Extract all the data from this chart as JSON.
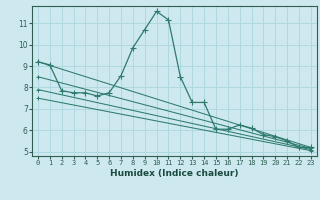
{
  "xlabel": "Humidex (Indice chaleur)",
  "bg_color": "#cde8ee",
  "line_color": "#2e7b6e",
  "grid_color": "#b0d8e0",
  "xlim": [
    -0.5,
    23.5
  ],
  "ylim": [
    4.8,
    11.8
  ],
  "xticks": [
    0,
    1,
    2,
    3,
    4,
    5,
    6,
    7,
    8,
    9,
    10,
    11,
    12,
    13,
    14,
    15,
    16,
    17,
    18,
    19,
    20,
    21,
    22,
    23
  ],
  "yticks": [
    5,
    6,
    7,
    8,
    9,
    10,
    11
  ],
  "main_series": [
    [
      0,
      9.2
    ],
    [
      1,
      9.05
    ],
    [
      2,
      7.85
    ],
    [
      3,
      7.75
    ],
    [
      4,
      7.75
    ],
    [
      5,
      7.6
    ],
    [
      6,
      7.75
    ],
    [
      7,
      8.55
    ],
    [
      8,
      9.85
    ],
    [
      9,
      10.7
    ],
    [
      10,
      11.55
    ],
    [
      11,
      11.15
    ],
    [
      12,
      8.5
    ],
    [
      13,
      7.3
    ],
    [
      14,
      7.3
    ],
    [
      15,
      6.05
    ],
    [
      16,
      6.05
    ],
    [
      17,
      6.25
    ],
    [
      18,
      6.1
    ],
    [
      19,
      5.8
    ],
    [
      20,
      5.7
    ],
    [
      21,
      5.5
    ],
    [
      22,
      5.2
    ],
    [
      23,
      5.2
    ]
  ],
  "linear_series": [
    [
      [
        0,
        9.2
      ],
      [
        23,
        5.2
      ]
    ],
    [
      [
        0,
        8.5
      ],
      [
        23,
        5.15
      ]
    ],
    [
      [
        0,
        7.9
      ],
      [
        23,
        5.1
      ]
    ],
    [
      [
        0,
        7.5
      ],
      [
        23,
        5.05
      ]
    ]
  ]
}
